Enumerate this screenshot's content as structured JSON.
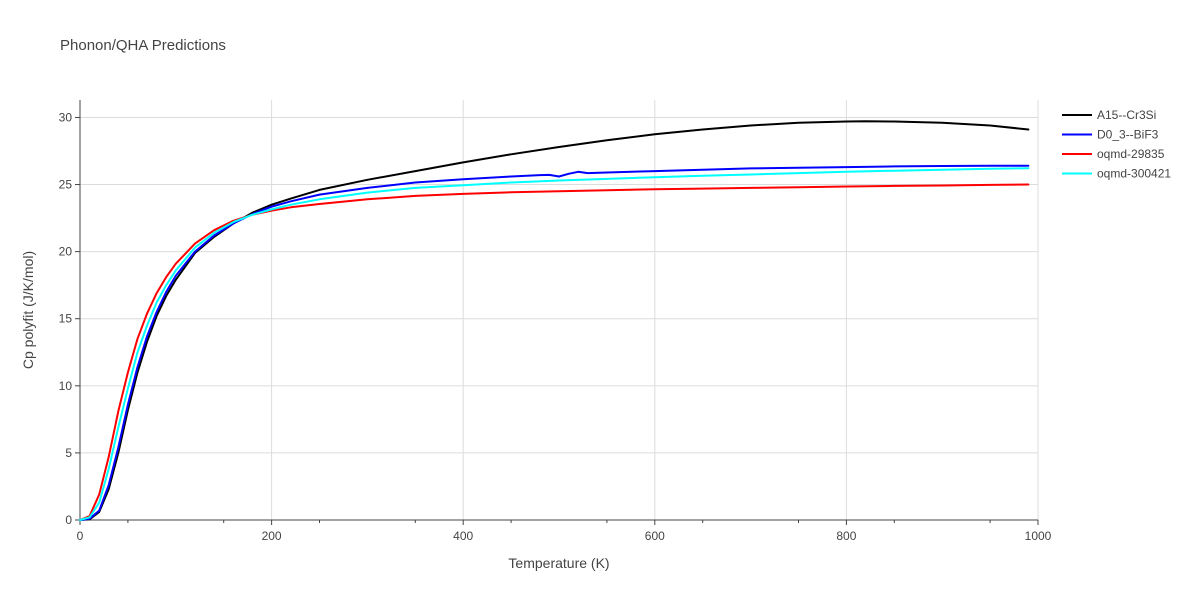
{
  "chart_data": {
    "type": "line",
    "title": "Phonon/QHA Predictions",
    "xlabel": "Temperature (K)",
    "ylabel": "Cp polyfit (J/K/mol)",
    "xlim": [
      0,
      1000
    ],
    "ylim": [
      0,
      31.3
    ],
    "xticks": [
      0,
      200,
      400,
      600,
      800,
      1000
    ],
    "xtick_labels": [
      "0",
      "200",
      "400",
      "600",
      "800",
      "1000"
    ],
    "yticks": [
      0,
      5,
      10,
      15,
      20,
      25,
      30
    ],
    "ytick_labels": [
      "0",
      "5",
      "10",
      "15",
      "20",
      "25",
      "30"
    ],
    "grid": true,
    "legend_position": "top-right",
    "series": [
      {
        "name": "A15--Cr3Si",
        "color": "#000000",
        "x": [
          0,
          10,
          20,
          30,
          40,
          50,
          60,
          70,
          80,
          90,
          100,
          120,
          140,
          160,
          180,
          200,
          220,
          250,
          300,
          350,
          400,
          450,
          500,
          550,
          600,
          650,
          700,
          750,
          800,
          820,
          850,
          900,
          950,
          990
        ],
        "y": [
          0,
          0.05,
          0.6,
          2.3,
          5.0,
          8.2,
          11.0,
          13.3,
          15.2,
          16.7,
          17.9,
          19.9,
          21.1,
          22.1,
          22.9,
          23.5,
          23.95,
          24.6,
          25.35,
          26.0,
          26.65,
          27.25,
          27.8,
          28.3,
          28.75,
          29.1,
          29.4,
          29.6,
          29.7,
          29.72,
          29.7,
          29.6,
          29.4,
          29.1
        ]
      },
      {
        "name": "D0_3--BiF3",
        "color": "#0000ff",
        "x": [
          0,
          10,
          20,
          30,
          40,
          50,
          60,
          70,
          80,
          90,
          100,
          120,
          140,
          160,
          180,
          200,
          220,
          250,
          300,
          350,
          400,
          450,
          480,
          490,
          500,
          510,
          520,
          530,
          550,
          600,
          650,
          700,
          750,
          800,
          850,
          900,
          950,
          990
        ],
        "y": [
          0,
          0.1,
          0.7,
          2.6,
          5.4,
          8.6,
          11.4,
          13.7,
          15.5,
          17.0,
          18.2,
          20.0,
          21.2,
          22.1,
          22.8,
          23.35,
          23.75,
          24.25,
          24.75,
          25.15,
          25.4,
          25.6,
          25.7,
          25.72,
          25.6,
          25.8,
          25.95,
          25.85,
          25.9,
          26.0,
          26.1,
          26.2,
          26.25,
          26.3,
          26.35,
          26.38,
          26.4,
          26.4
        ]
      },
      {
        "name": "oqmd-29835",
        "color": "#ff0000",
        "x": [
          0,
          10,
          20,
          30,
          40,
          50,
          60,
          70,
          80,
          90,
          100,
          120,
          140,
          160,
          180,
          200,
          220,
          250,
          300,
          350,
          400,
          450,
          500,
          550,
          600,
          650,
          700,
          750,
          800,
          850,
          900,
          950,
          990
        ],
        "y": [
          0,
          0.3,
          1.9,
          4.7,
          8.1,
          11.0,
          13.5,
          15.4,
          16.9,
          18.1,
          19.1,
          20.6,
          21.6,
          22.3,
          22.75,
          23.05,
          23.3,
          23.55,
          23.9,
          24.15,
          24.3,
          24.42,
          24.5,
          24.58,
          24.65,
          24.7,
          24.75,
          24.8,
          24.85,
          24.9,
          24.93,
          24.97,
          25.0
        ]
      },
      {
        "name": "oqmd-300421",
        "color": "#00ffff",
        "x": [
          0,
          10,
          20,
          30,
          40,
          50,
          60,
          70,
          80,
          90,
          100,
          120,
          140,
          160,
          180,
          200,
          220,
          250,
          300,
          350,
          400,
          450,
          500,
          550,
          600,
          650,
          700,
          750,
          800,
          850,
          900,
          950,
          990
        ],
        "y": [
          0,
          0.2,
          1.3,
          3.8,
          6.9,
          9.8,
          12.5,
          14.5,
          16.2,
          17.5,
          18.6,
          20.3,
          21.4,
          22.2,
          22.75,
          23.15,
          23.5,
          23.9,
          24.4,
          24.75,
          24.95,
          25.15,
          25.3,
          25.42,
          25.55,
          25.65,
          25.75,
          25.85,
          25.95,
          26.03,
          26.1,
          26.17,
          26.22
        ]
      }
    ]
  }
}
